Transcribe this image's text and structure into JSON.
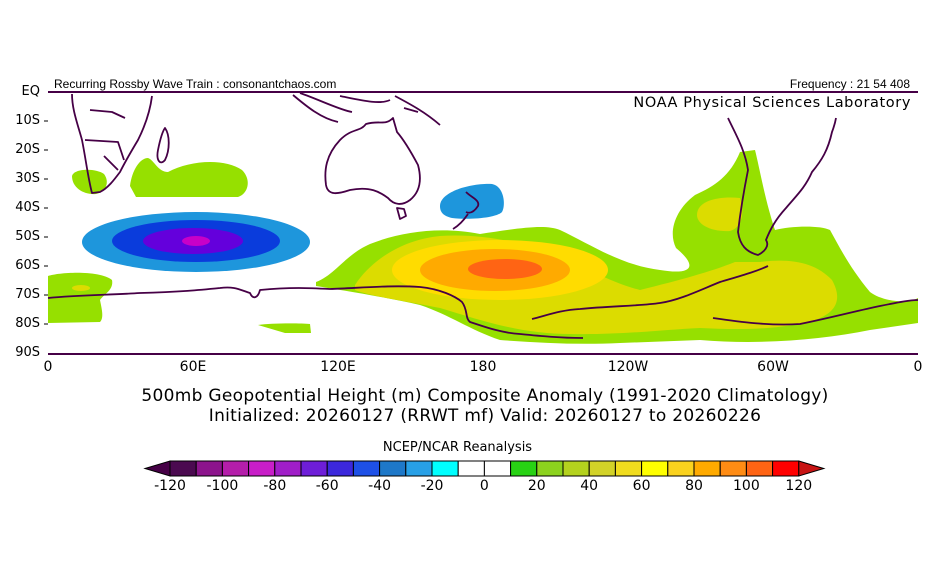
{
  "header": {
    "left": "Recurring Rossby Wave Train : consonantchaos.com",
    "right": "Frequency : 21 54 408",
    "lab": "NOAA Physical Sciences Laboratory"
  },
  "axes": {
    "y_labels": [
      "EQ",
      "10S",
      "20S",
      "30S",
      "40S",
      "50S",
      "60S",
      "70S",
      "80S",
      "90S"
    ],
    "x_labels": [
      "0",
      "60E",
      "120E",
      "180",
      "120W",
      "60W",
      "0"
    ]
  },
  "title": {
    "line1": "500mb Geopotential Height (m) Composite Anomaly (1991-2020 Climatology)",
    "line2": "Initialized: 20260127 (RRWT mf) Valid: 20260127 to 20260226"
  },
  "colorbar": {
    "title": "NCEP/NCAR Reanalysis",
    "labels": [
      "-120",
      "-100",
      "-80",
      "-60",
      "-40",
      "-20",
      "0",
      "20",
      "40",
      "60",
      "80",
      "100",
      "120"
    ],
    "label_values": [
      -120,
      -100,
      -80,
      -60,
      -40,
      -20,
      0,
      20,
      40,
      60,
      80,
      100,
      120
    ],
    "left_arrow_color": "#460046",
    "right_arrow_color": "#c81414",
    "colors": [
      "#4b0a50",
      "#8c148c",
      "#b41eaa",
      "#c81ec8",
      "#a01ec8",
      "#6e1ed8",
      "#3c28dc",
      "#1e50e6",
      "#1e78c8",
      "#28a0e6",
      "#00ffff",
      "#ffffff",
      "#ffffff",
      "#28d214",
      "#8cd21e",
      "#b4d21e",
      "#d2d228",
      "#f0dc1e",
      "#ffff00",
      "#fad21e",
      "#ffaa00",
      "#ff8c14",
      "#ff6414",
      "#ff0000"
    ]
  },
  "anomaly_colors": {
    "neg30": "#1e96dc",
    "neg50": "#0a3cdc",
    "neg70": "#6400dc",
    "neg90": "#c800c8",
    "pos10": "#96e000",
    "pos30": "#dcdc00",
    "pos50": "#ffdc00",
    "pos70": "#ffaa00",
    "pos90": "#ff6414",
    "coast": "#460046"
  }
}
